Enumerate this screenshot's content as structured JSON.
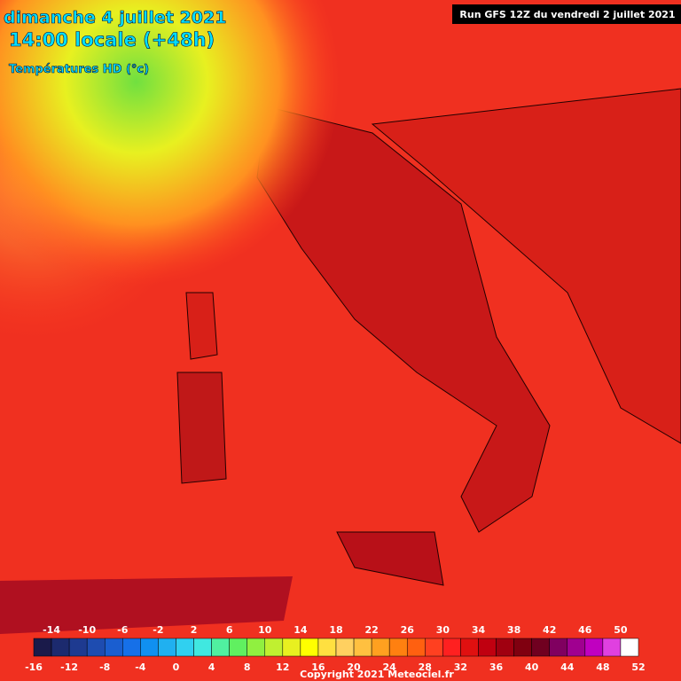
{
  "header": {
    "date": "dimanche 4 juillet 2021",
    "time": "14:00 locale (+48h)",
    "field": "Températures HD (°c)",
    "run": "Run GFS 12Z du vendredi 2 juillet 2021"
  },
  "footer": {
    "copyright": "Copyright 2021 Meteociel.fr"
  },
  "scale": {
    "min": -16,
    "max": 52,
    "top_labels": [
      -14,
      -10,
      -6,
      -2,
      2,
      6,
      10,
      14,
      18,
      22,
      26,
      30,
      34,
      38,
      42,
      46,
      50
    ],
    "bottom_labels": [
      -16,
      -12,
      -8,
      -4,
      0,
      4,
      8,
      12,
      16,
      20,
      24,
      28,
      32,
      36,
      40,
      44,
      48,
      52
    ],
    "colors": [
      "#1a1a4a",
      "#1c2a6e",
      "#1e3a90",
      "#1e4cb0",
      "#1a5ed0",
      "#1670e8",
      "#1090f0",
      "#20b0f0",
      "#30d0f0",
      "#40e8e0",
      "#50f0a0",
      "#60f060",
      "#90f040",
      "#c0f030",
      "#e8f020",
      "#ffff00",
      "#ffe040",
      "#ffd060",
      "#ffc040",
      "#ffa020",
      "#ff8010",
      "#ff6010",
      "#ff4020",
      "#ff2020",
      "#e01010",
      "#c00010",
      "#a00010",
      "#800010",
      "#700020",
      "#800060",
      "#a00090",
      "#c000c0",
      "#e040e0",
      "#ffffff"
    ]
  }
}
